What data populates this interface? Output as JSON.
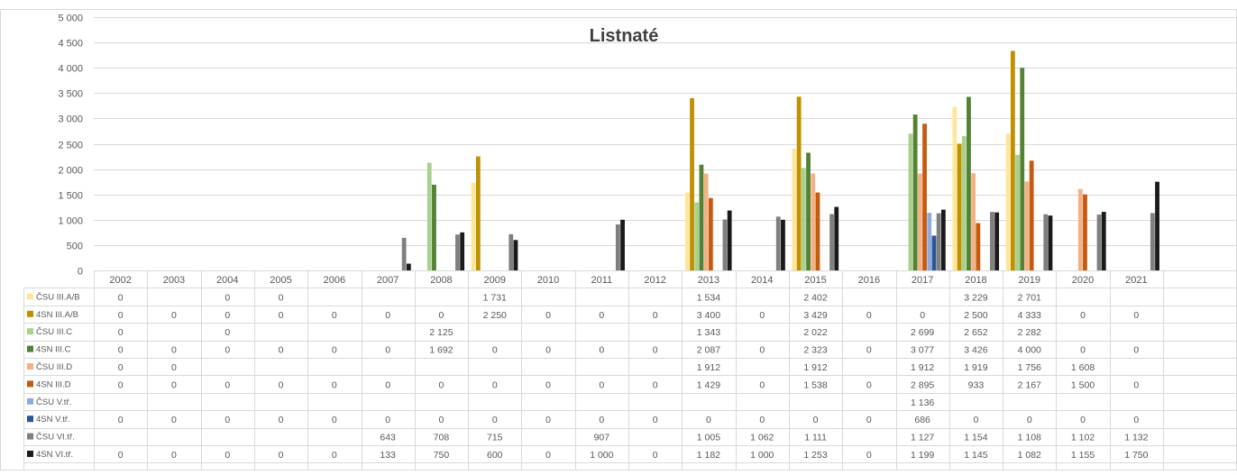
{
  "chart_data": {
    "type": "bar",
    "title": "Listnaté",
    "ylim": [
      0,
      5000
    ],
    "ytick_labels": [
      "0",
      "500",
      "1 000",
      "1 500",
      "2 000",
      "2 500",
      "3 000",
      "3 500",
      "4 000",
      "4 500",
      "5 000"
    ],
    "ytick_values": [
      0,
      500,
      1000,
      1500,
      2000,
      2500,
      3000,
      3500,
      4000,
      4500,
      5000
    ],
    "grid": true,
    "legend_placement": "data-table-left",
    "categories": [
      "2002",
      "2003",
      "2004",
      "2005",
      "2006",
      "2007",
      "2008",
      "2009",
      "2010",
      "2011",
      "2012",
      "2013",
      "2014",
      "2015",
      "2016",
      "2017",
      "2018",
      "2019",
      "2020",
      "2021"
    ],
    "series": [
      {
        "name": "ČSU III.A/B",
        "color": "#FFE699",
        "values": [
          0,
          null,
          0,
          0,
          null,
          null,
          null,
          1731,
          null,
          null,
          null,
          1534,
          null,
          2402,
          null,
          null,
          3229,
          2701,
          null,
          null
        ],
        "labels": [
          "0",
          "",
          "0",
          "0",
          "",
          "",
          "",
          "1 731",
          "",
          "",
          "",
          "1 534",
          "",
          "2 402",
          "",
          "",
          "3 229",
          "2 701",
          "",
          ""
        ]
      },
      {
        "name": "4SN III.A/B",
        "color": "#BF9000",
        "values": [
          0,
          0,
          0,
          0,
          0,
          0,
          0,
          2250,
          0,
          0,
          0,
          3400,
          0,
          3429,
          0,
          0,
          2500,
          4333,
          0,
          0
        ],
        "labels": [
          "0",
          "0",
          "0",
          "0",
          "0",
          "0",
          "0",
          "2 250",
          "0",
          "0",
          "0",
          "3 400",
          "0",
          "3 429",
          "0",
          "0",
          "2 500",
          "4 333",
          "0",
          "0"
        ]
      },
      {
        "name": "ČSU III.C",
        "color": "#A9D18E",
        "values": [
          0,
          null,
          0,
          null,
          null,
          null,
          2125,
          null,
          null,
          null,
          null,
          1343,
          null,
          2022,
          null,
          2699,
          2652,
          2282,
          null,
          null
        ],
        "labels": [
          "0",
          "",
          "0",
          "",
          "",
          "",
          "2 125",
          "",
          "",
          "",
          "",
          "1 343",
          "",
          "2 022",
          "",
          "2 699",
          "2 652",
          "2 282",
          "",
          ""
        ]
      },
      {
        "name": "4SN III.C",
        "color": "#548235",
        "values": [
          0,
          0,
          0,
          0,
          0,
          0,
          1692,
          0,
          0,
          0,
          0,
          2087,
          0,
          2323,
          0,
          3077,
          3426,
          4000,
          0,
          0
        ],
        "labels": [
          "0",
          "0",
          "0",
          "0",
          "0",
          "0",
          "1 692",
          "0",
          "0",
          "0",
          "0",
          "2 087",
          "0",
          "2 323",
          "0",
          "3 077",
          "3 426",
          "4 000",
          "0",
          "0"
        ]
      },
      {
        "name": "ČSU III.D",
        "color": "#F4B183",
        "values": [
          0,
          0,
          null,
          null,
          null,
          null,
          null,
          null,
          null,
          null,
          null,
          1912,
          null,
          1912,
          null,
          1912,
          1919,
          1756,
          1608,
          null
        ],
        "labels": [
          "0",
          "0",
          "",
          "",
          "",
          "",
          "",
          "",
          "",
          "",
          "",
          "1 912",
          "",
          "1 912",
          "",
          "1 912",
          "1 919",
          "1 756",
          "1 608",
          ""
        ]
      },
      {
        "name": "4SN III.D",
        "color": "#C55A11",
        "values": [
          0,
          0,
          0,
          0,
          0,
          0,
          0,
          0,
          0,
          0,
          0,
          1429,
          0,
          1538,
          0,
          2895,
          933,
          2167,
          1500,
          0
        ],
        "labels": [
          "0",
          "0",
          "0",
          "0",
          "0",
          "0",
          "0",
          "0",
          "0",
          "0",
          "0",
          "1 429",
          "0",
          "1 538",
          "0",
          "2 895",
          "933",
          "2 167",
          "1 500",
          "0"
        ]
      },
      {
        "name": "ČSU V.tř.",
        "color": "#8FAADC",
        "values": [
          null,
          null,
          null,
          null,
          null,
          null,
          null,
          null,
          null,
          null,
          null,
          null,
          null,
          null,
          null,
          1136,
          null,
          null,
          null,
          null
        ],
        "labels": [
          "",
          "",
          "",
          "",
          "",
          "",
          "",
          "",
          "",
          "",
          "",
          "",
          "",
          "",
          "",
          "1 136",
          "",
          "",
          "",
          ""
        ]
      },
      {
        "name": "4SN V.tř.",
        "color": "#2F5597",
        "values": [
          0,
          0,
          0,
          0,
          0,
          0,
          0,
          0,
          0,
          0,
          0,
          0,
          0,
          0,
          0,
          686,
          0,
          0,
          0,
          0
        ],
        "labels": [
          "0",
          "0",
          "0",
          "0",
          "0",
          "0",
          "0",
          "0",
          "0",
          "0",
          "0",
          "0",
          "0",
          "0",
          "0",
          "686",
          "0",
          "0",
          "0",
          "0"
        ]
      },
      {
        "name": "ČSU VI.tř.",
        "color": "#7F7F7F",
        "values": [
          null,
          null,
          null,
          null,
          null,
          643,
          708,
          715,
          null,
          907,
          null,
          1005,
          1062,
          1111,
          null,
          1127,
          1154,
          1108,
          1102,
          1132
        ],
        "labels": [
          "",
          "",
          "",
          "",
          "",
          "643",
          "708",
          "715",
          "",
          "907",
          "",
          "1 005",
          "1 062",
          "1 111",
          "",
          "1 127",
          "1 154",
          "1 108",
          "1 102",
          "1 132"
        ]
      },
      {
        "name": "4SN VI.tř.",
        "color": "#1A1A1A",
        "values": [
          0,
          0,
          0,
          0,
          0,
          133,
          750,
          600,
          0,
          1000,
          0,
          1182,
          1000,
          1253,
          0,
          1199,
          1145,
          1082,
          1155,
          1750
        ],
        "labels": [
          "0",
          "0",
          "0",
          "0",
          "0",
          "133",
          "750",
          "600",
          "0",
          "1 000",
          "0",
          "1 182",
          "1 000",
          "1 253",
          "0",
          "1 199",
          "1 145",
          "1 082",
          "1 155",
          "1 750"
        ]
      }
    ]
  }
}
